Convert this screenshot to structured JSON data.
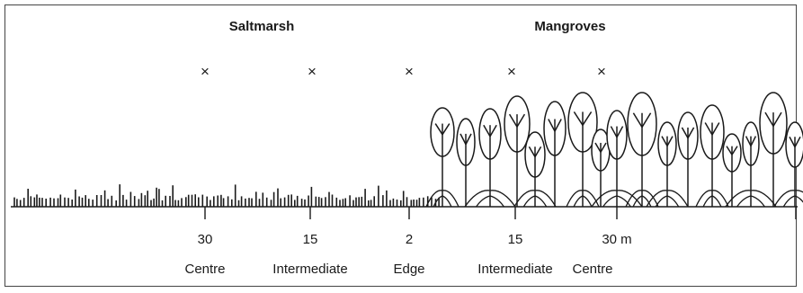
{
  "titles": {
    "saltmarsh": "Saltmarsh",
    "mangroves": "Mangroves"
  },
  "markers": [
    "×",
    "×",
    "×",
    "×",
    "×"
  ],
  "distances": [
    "30",
    "15",
    "2",
    "15",
    "30 m"
  ],
  "zones": [
    "Centre",
    "Intermediate",
    "Edge",
    "Intermediate",
    "Centre"
  ],
  "colors": {
    "ink": "#1a1a1a",
    "frame": "#444444",
    "background": "#ffffff"
  },
  "icons": {
    "sample_marker": "cross-mark",
    "tree": "mangrove-tree",
    "grass": "saltmarsh-grass"
  }
}
